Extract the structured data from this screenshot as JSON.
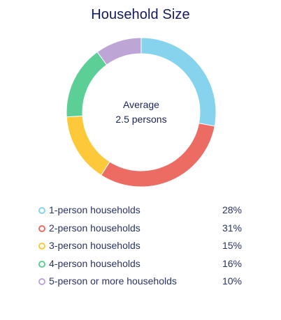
{
  "chart_data": {
    "type": "pie",
    "title": "Household Size",
    "center_label": {
      "line1": "Average",
      "line2": "2.5 persons"
    },
    "categories": [
      "1-person households",
      "2-person households",
      "3-person households",
      "4-person households",
      "5-person or more households"
    ],
    "values": [
      28,
      31,
      15,
      16,
      10
    ],
    "value_labels": [
      "28%",
      "31%",
      "15%",
      "16%",
      "10%"
    ],
    "colors": [
      "#86d3ee",
      "#ec6c63",
      "#fdc93a",
      "#5ccf96",
      "#bda6d6"
    ],
    "legend_placement": "bottom"
  }
}
